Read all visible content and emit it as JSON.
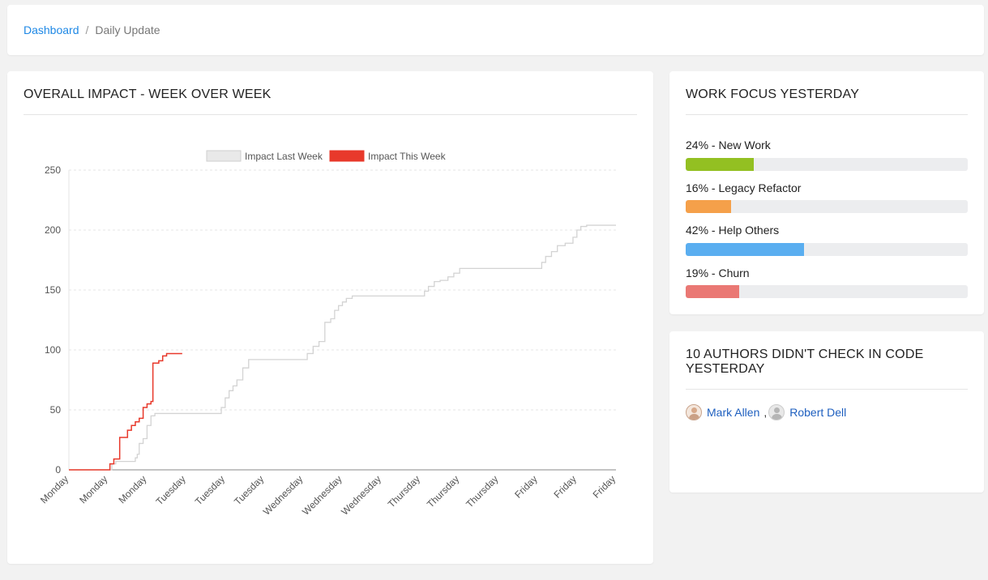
{
  "breadcrumb": {
    "items": [
      "Dashboard",
      "Daily Update"
    ],
    "separator": "/"
  },
  "impact": {
    "title": "OVERALL IMPACT - WEEK OVER WEEK"
  },
  "chart_data": {
    "type": "line",
    "legend_placement": "top-center",
    "grid": true,
    "ylim": [
      0,
      250
    ],
    "yticks": [
      0,
      50,
      100,
      150,
      200,
      250
    ],
    "x_tick_labels": [
      "Monday",
      "Monday",
      "Monday",
      "Tuesday",
      "Tuesday",
      "Tuesday",
      "Wednesday",
      "Wednesday",
      "Wednesday",
      "Thursday",
      "Thursday",
      "Thursday",
      "Friday",
      "Friday",
      "Friday"
    ],
    "series": [
      {
        "name": "Impact Last Week",
        "color": "#d3d3d3",
        "points": [
          [
            0,
            0
          ],
          [
            1,
            0
          ],
          [
            1.1,
            5
          ],
          [
            1.2,
            7
          ],
          [
            1.6,
            7
          ],
          [
            1.7,
            10
          ],
          [
            1.75,
            13
          ],
          [
            1.8,
            22
          ],
          [
            1.9,
            26
          ],
          [
            2.0,
            37
          ],
          [
            2.1,
            45
          ],
          [
            2.2,
            47
          ],
          [
            3.8,
            47
          ],
          [
            3.9,
            52
          ],
          [
            4.0,
            60
          ],
          [
            4.1,
            66
          ],
          [
            4.2,
            70
          ],
          [
            4.3,
            75
          ],
          [
            4.45,
            85
          ],
          [
            4.6,
            92
          ],
          [
            6.0,
            92
          ],
          [
            6.1,
            97
          ],
          [
            6.25,
            103
          ],
          [
            6.4,
            107
          ],
          [
            6.55,
            123
          ],
          [
            6.7,
            126
          ],
          [
            6.8,
            133
          ],
          [
            6.9,
            137
          ],
          [
            7.0,
            140
          ],
          [
            7.1,
            143
          ],
          [
            7.25,
            145
          ],
          [
            7.5,
            145
          ],
          [
            9.0,
            145
          ],
          [
            9.1,
            149
          ],
          [
            9.2,
            153
          ],
          [
            9.35,
            157
          ],
          [
            9.5,
            158
          ],
          [
            9.7,
            161
          ],
          [
            9.85,
            164
          ],
          [
            10.0,
            168
          ],
          [
            12.0,
            168
          ],
          [
            12.1,
            173
          ],
          [
            12.2,
            178
          ],
          [
            12.35,
            182
          ],
          [
            12.5,
            187
          ],
          [
            12.7,
            189
          ],
          [
            12.9,
            194
          ],
          [
            13.0,
            200
          ],
          [
            13.1,
            203
          ],
          [
            13.25,
            204
          ],
          [
            13.5,
            204
          ],
          [
            14.0,
            204
          ]
        ]
      },
      {
        "name": "Impact This Week",
        "color": "#e8392b",
        "points": [
          [
            0,
            0
          ],
          [
            1.0,
            0
          ],
          [
            1.05,
            5
          ],
          [
            1.15,
            9
          ],
          [
            1.3,
            27
          ],
          [
            1.5,
            33
          ],
          [
            1.6,
            37
          ],
          [
            1.7,
            40
          ],
          [
            1.8,
            43
          ],
          [
            1.9,
            52
          ],
          [
            2.0,
            55
          ],
          [
            2.1,
            57
          ],
          [
            2.15,
            89
          ],
          [
            2.3,
            91
          ],
          [
            2.4,
            95
          ],
          [
            2.5,
            97
          ],
          [
            2.9,
            97
          ]
        ]
      }
    ]
  },
  "focus": {
    "title": "WORK FOCUS YESTERDAY",
    "items": [
      {
        "label": "24% - New Work",
        "percent": 24,
        "color": "#93c022"
      },
      {
        "label": "16% - Legacy Refactor",
        "percent": 16,
        "color": "#f5a04a"
      },
      {
        "label": "42% - Help Others",
        "percent": 42,
        "color": "#5aaef0"
      },
      {
        "label": "19% - Churn",
        "percent": 19,
        "color": "#ea7874"
      }
    ]
  },
  "authors": {
    "title": "10 AUTHORS DIDN'T CHECK IN CODE YESTERDAY",
    "people": [
      {
        "name": "Mark Allen",
        "icon": "avatar-photo-icon"
      },
      {
        "name": "Robert Dell",
        "icon": "avatar-placeholder-icon"
      }
    ],
    "separator": ","
  }
}
